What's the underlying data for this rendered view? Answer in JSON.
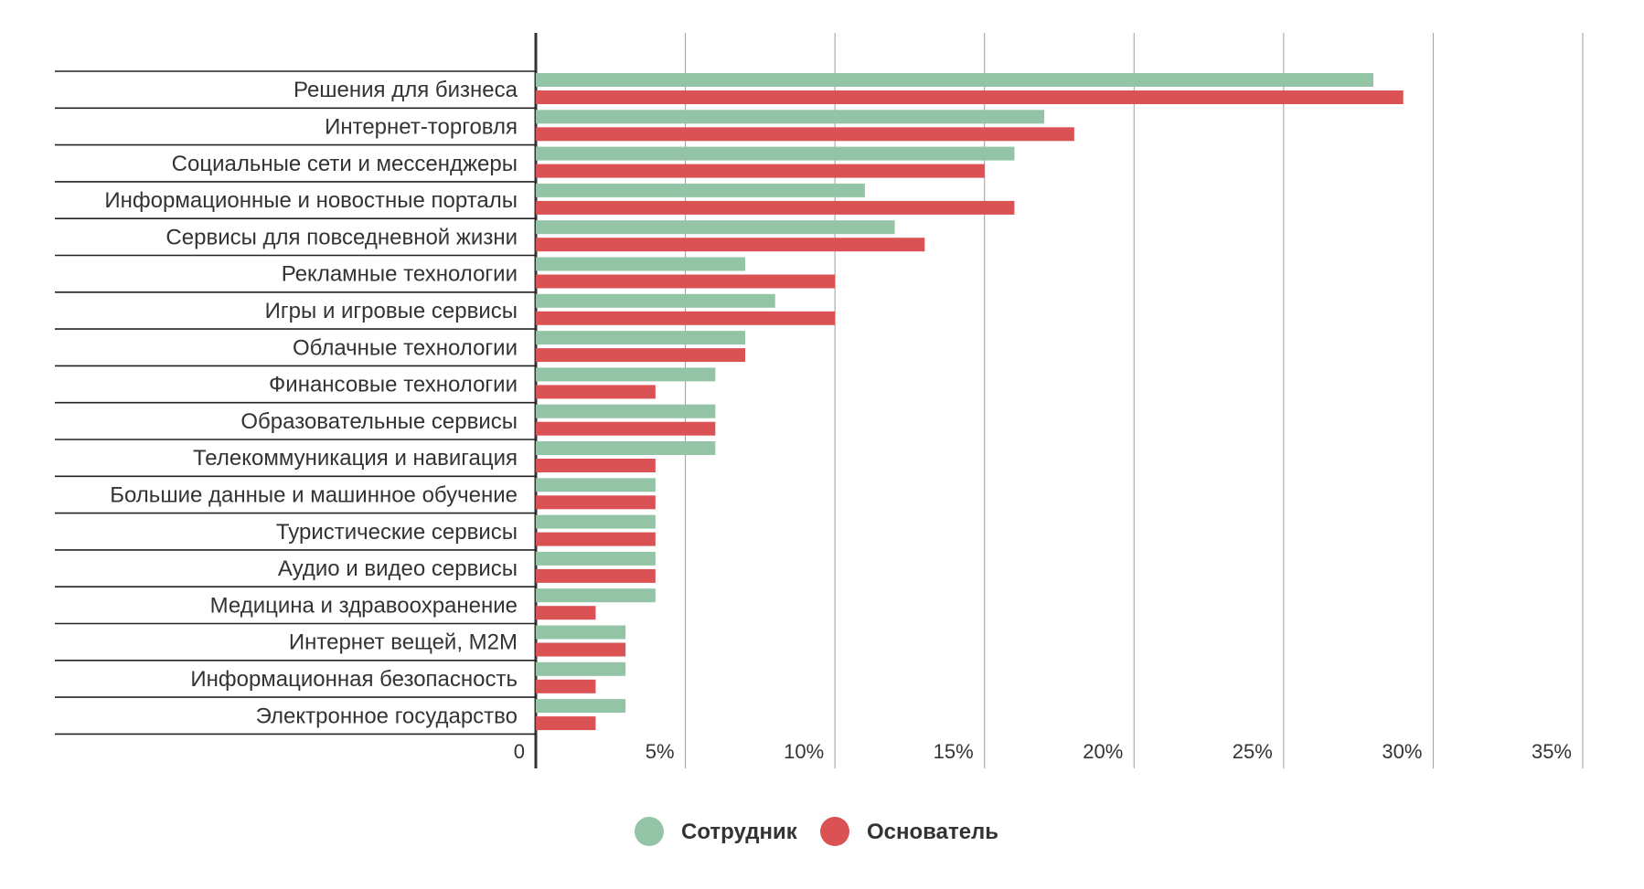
{
  "chart_data": {
    "type": "bar",
    "orientation": "horizontal",
    "title": "",
    "xlabel": "",
    "ylabel": "",
    "xlim": [
      0,
      35
    ],
    "x_ticks": [
      "0",
      "5%",
      "10%",
      "15%",
      "20%",
      "25%",
      "30%",
      "35%"
    ],
    "x_tick_values": [
      0,
      5,
      10,
      15,
      20,
      25,
      30,
      35
    ],
    "grid": true,
    "legend_position": "bottom-center",
    "categories": [
      "Решения для бизнеса",
      "Интернет-торговля",
      "Социальные сети и мессенджеры",
      "Информационные и новостные порталы",
      "Сервисы для повседневной жизни",
      "Рекламные технологии",
      "Игры и игровые сервисы",
      "Облачные технологии",
      "Финансовые технологии",
      "Образовательные сервисы",
      "Телекоммуникация и навигация",
      "Большие данные и машинное обучение",
      "Туристические сервисы",
      "Аудио и видео сервисы",
      "Медицина и здравоохранение",
      "Интернет вещей, M2M",
      "Информационная безопасность",
      "Электронное государство"
    ],
    "series": [
      {
        "name": "Сотрудник",
        "color": "#93c4a6",
        "values": [
          28,
          17,
          16,
          11,
          12,
          7,
          8,
          7,
          6,
          6,
          6,
          4,
          4,
          4,
          4,
          3,
          3,
          3
        ]
      },
      {
        "name": "Основатель",
        "color": "#db5255",
        "values": [
          29,
          18,
          15,
          16,
          13,
          10,
          10,
          7,
          4,
          6,
          4,
          4,
          4,
          4,
          2,
          3,
          2,
          2
        ]
      }
    ]
  }
}
